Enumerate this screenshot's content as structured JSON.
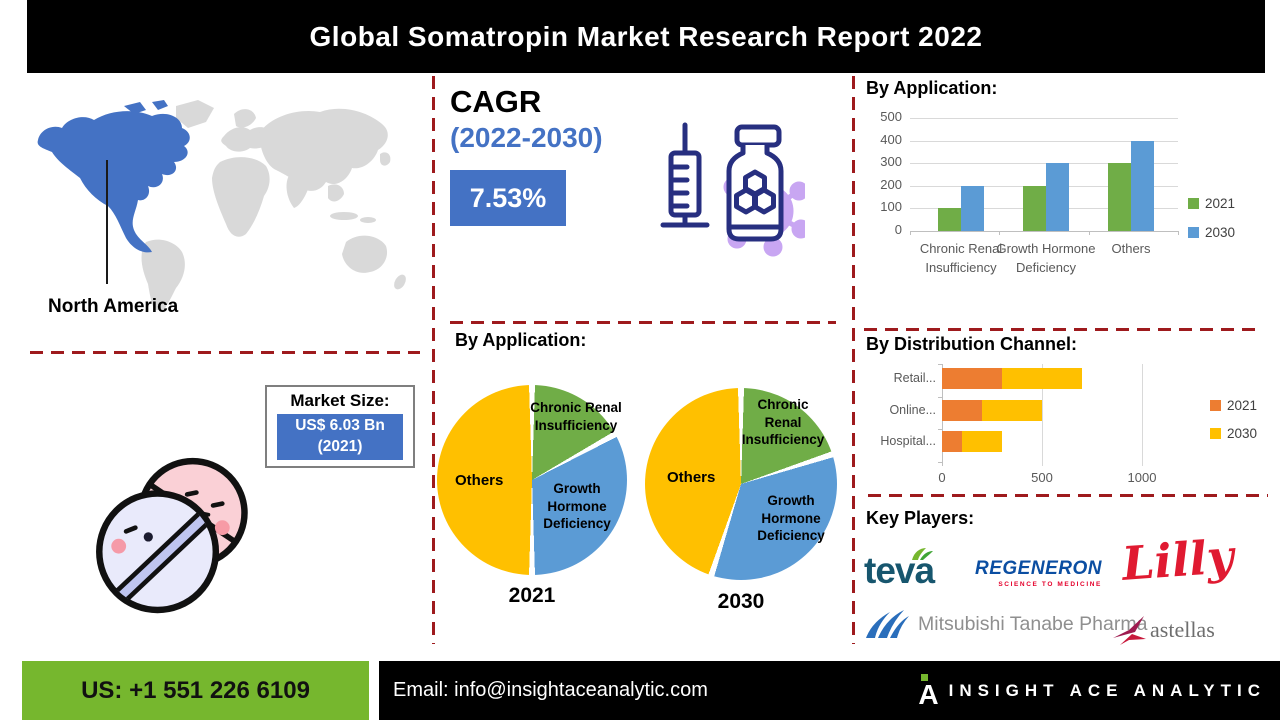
{
  "title": "Global Somatropin Market  Research Report 2022",
  "map": {
    "region_label": "North America"
  },
  "market_size": {
    "label": "Market Size:",
    "value": "US$ 6.03 Bn",
    "year": "(2021)"
  },
  "cagr": {
    "label": "CAGR",
    "period": "(2022-2030)",
    "value": "7.53%"
  },
  "sections": {
    "app_pie_title": "By Application:",
    "key_players_title": "Key Players:"
  },
  "chart_data": [
    {
      "type": "bar",
      "title": "By Application:",
      "categories": [
        "Chronic Renal Insufficiency",
        "Growth Hormone Deficiency",
        "Others"
      ],
      "series": [
        {
          "name": "2021",
          "color": "#70AD47",
          "values": [
            100,
            200,
            300
          ]
        },
        {
          "name": "2030",
          "color": "#5B9BD5",
          "values": [
            200,
            300,
            400
          ]
        }
      ],
      "ylim": [
        0,
        500
      ],
      "yticks": [
        0,
        100,
        200,
        300,
        400,
        500
      ],
      "legend_position": "right",
      "grid": true
    },
    {
      "type": "pie",
      "name": "2021",
      "slices": [
        {
          "label": "Chronic Renal Insufficiency",
          "value": 17,
          "color": "#70AD47"
        },
        {
          "label": "Growth Hormone Deficiency",
          "value": 33,
          "color": "#5B9BD5"
        },
        {
          "label": "Others",
          "value": 50,
          "color": "#FFC000"
        }
      ]
    },
    {
      "type": "pie",
      "name": "2030",
      "slices": [
        {
          "label": "Chronic Renal Insufficiency",
          "value": 20,
          "color": "#70AD47"
        },
        {
          "label": "Growth Hormone Deficiency",
          "value": 35,
          "color": "#5B9BD5"
        },
        {
          "label": "Others",
          "value": 45,
          "color": "#FFC000"
        }
      ]
    },
    {
      "type": "stacked_bar_h",
      "title": "By Distribution Channel:",
      "categories": [
        "Retail...",
        "Online...",
        "Hospital..."
      ],
      "series": [
        {
          "name": "2021",
          "color": "#ED7D31",
          "values": [
            300,
            200,
            100
          ]
        },
        {
          "name": "2030",
          "color": "#FFC000",
          "values": [
            400,
            300,
            200
          ]
        }
      ],
      "xticks": [
        0,
        500,
        1000
      ],
      "xlim": [
        0,
        1200
      ],
      "legend_position": "right"
    }
  ],
  "key_players": [
    {
      "name": "Teva",
      "text": "teva"
    },
    {
      "name": "Regeneron",
      "text": "REGENERON",
      "tagline": "SCIENCE TO MEDICINE"
    },
    {
      "name": "Eli Lilly",
      "text": "Lilly"
    },
    {
      "name": "Mitsubishi Tanabe Pharma",
      "text": "Mitsubishi Tanabe Pharma"
    },
    {
      "name": "Astellas",
      "text": "astellas"
    }
  ],
  "footer": {
    "phone": "US: +1 551 226 6109",
    "email": "Email: info@insightaceanalytic.com",
    "brand": "INSIGHT ACE ANALYTIC"
  },
  "colors": {
    "accent_blue": "#4472C4",
    "chart_blue": "#5B9BD5",
    "chart_green": "#70AD47",
    "chart_yellow": "#FFC000",
    "chart_orange": "#ED7D31",
    "dashed_red": "#9E1A1D",
    "footer_green": "#76B72E"
  }
}
